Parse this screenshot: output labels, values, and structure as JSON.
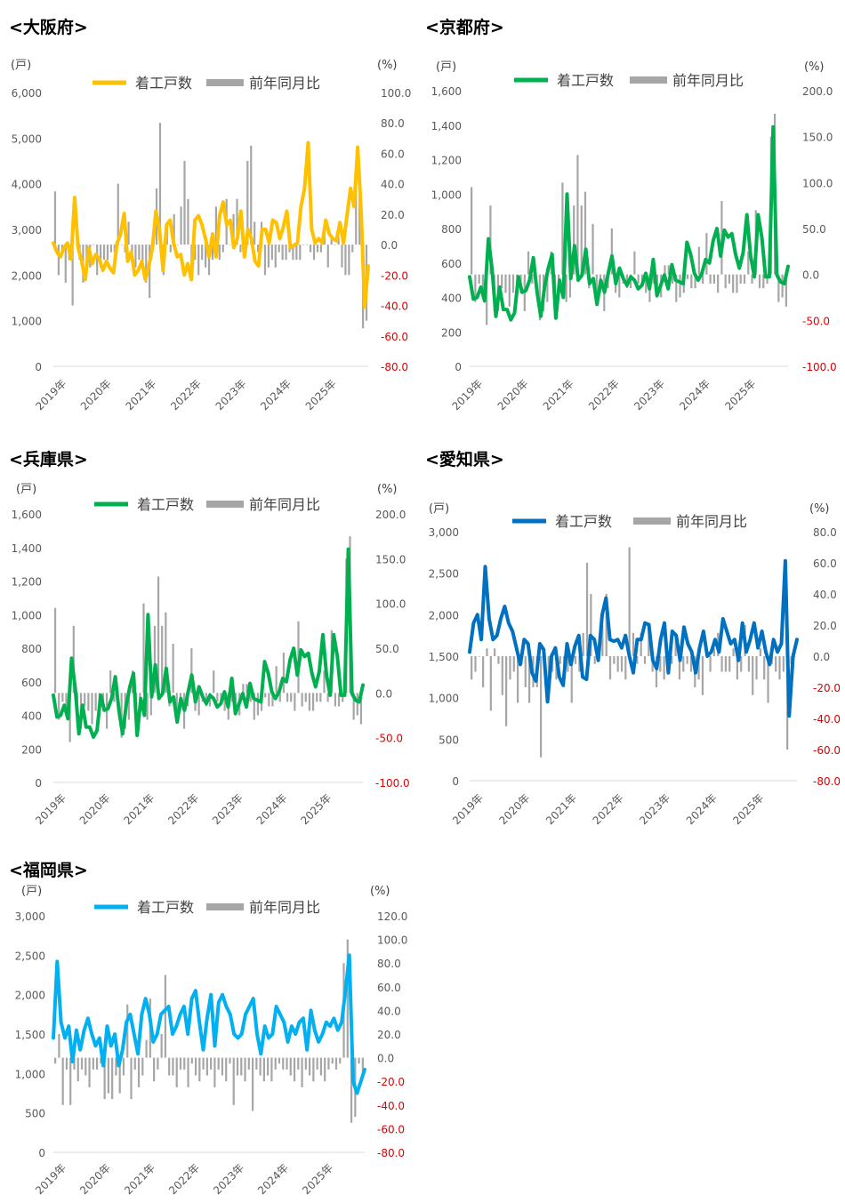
{
  "colors": {
    "osaka": "#FFC000",
    "kyoto": "#00B050",
    "hyogo": "#00B050",
    "aichi": "#0070C0",
    "fukuoka": "#00B0F0",
    "bar": "#A6A6A6",
    "negative_tick": "#E00000"
  },
  "legend": {
    "line": "着工戸数",
    "bar": "前年同月比"
  },
  "units": {
    "left": "(戸)",
    "right": "(%)"
  },
  "x_ticks": [
    "2019年",
    "2020年",
    "2021年",
    "2022年",
    "2023年",
    "2024年",
    "2025年"
  ],
  "chart_data": [
    {
      "id": "osaka",
      "title": "<大阪府>",
      "type": "line+bar",
      "y_left": {
        "min": 0,
        "max": 6000,
        "ticks": [
          "0",
          "1,000",
          "2,000",
          "3,000",
          "4,000",
          "5,000",
          "6,000"
        ]
      },
      "y_right": {
        "min": -80,
        "max": 100,
        "ticks": [
          "-80.0",
          "-60.0",
          "-40.0",
          "-20.0",
          "0.0",
          "20.0",
          "40.0",
          "60.0",
          "80.0",
          "100.0"
        ]
      },
      "series": [
        {
          "name": "着工戸数",
          "kind": "line",
          "values": [
            2700,
            2500,
            2400,
            2600,
            2700,
            2350,
            3700,
            2600,
            2300,
            1900,
            2600,
            2250,
            2450,
            2350,
            2100,
            2300,
            2150,
            2050,
            2700,
            2900,
            3350,
            2300,
            2500,
            2000,
            2100,
            2300,
            1900,
            2200,
            2600,
            3400,
            3000,
            2100,
            3100,
            3200,
            2700,
            2400,
            2450,
            2000,
            2250,
            1900,
            3200,
            3300,
            3100,
            2800,
            2400,
            2900,
            2400,
            3300,
            3600,
            3100,
            3200,
            2600,
            2800,
            3400,
            2400,
            3000,
            2800,
            2300,
            2200,
            3000,
            3000,
            2700,
            3200,
            3150,
            2800,
            3050,
            3400,
            2600,
            2650,
            2700,
            3500,
            3900,
            4900,
            3000,
            2700,
            2800,
            2700,
            3200,
            2900,
            2800,
            2750,
            3150,
            2700,
            3300,
            3900,
            3500,
            4800,
            3400,
            1300,
            2200
          ]
        },
        {
          "name": "前年同月比",
          "kind": "bar",
          "values": [
            35,
            -20,
            -5,
            -25,
            -10,
            -40,
            0,
            -10,
            -25,
            -15,
            -15,
            0,
            -20,
            -15,
            -10,
            -10,
            -5,
            -5,
            40,
            0,
            -5,
            15,
            -10,
            -15,
            -10,
            -15,
            -25,
            -35,
            0,
            37,
            80,
            -20,
            10,
            -5,
            20,
            0,
            25,
            55,
            30,
            -20,
            -10,
            -20,
            -10,
            -15,
            -20,
            -10,
            25,
            -10,
            -5,
            30,
            0,
            20,
            30,
            -5,
            0,
            55,
            65,
            15,
            -5,
            15,
            -20,
            -15,
            -10,
            -15,
            -5,
            -10,
            -10,
            -5,
            -10,
            -10,
            -10,
            0,
            0,
            -5,
            -10,
            -5,
            -5,
            10,
            -15,
            5,
            0,
            5,
            -15,
            -20,
            -20,
            -5,
            40,
            40,
            -55,
            -50
          ]
        }
      ]
    },
    {
      "id": "kyoto",
      "title": "<京都府>",
      "type": "line+bar",
      "y_left": {
        "min": 0,
        "max": 1600,
        "ticks": [
          "0",
          "200",
          "400",
          "600",
          "800",
          "1,000",
          "1,200",
          "1,400",
          "1,600"
        ]
      },
      "y_right": {
        "min": -100,
        "max": 200,
        "ticks": [
          "-100.0",
          "-50.0",
          "0.0",
          "50.0",
          "100.0",
          "150.0",
          "200.0"
        ]
      },
      "series": [
        {
          "name": "着工戸数",
          "kind": "line",
          "values": [
            520,
            390,
            400,
            460,
            380,
            740,
            560,
            290,
            460,
            330,
            330,
            270,
            310,
            520,
            430,
            440,
            500,
            630,
            430,
            290,
            460,
            570,
            650,
            280,
            500,
            400,
            1000,
            510,
            700,
            500,
            530,
            680,
            480,
            510,
            360,
            500,
            430,
            540,
            640,
            480,
            570,
            510,
            470,
            520,
            500,
            450,
            470,
            540,
            450,
            620,
            410,
            470,
            530,
            450,
            590,
            500,
            490,
            480,
            720,
            650,
            540,
            500,
            540,
            620,
            600,
            730,
            800,
            640,
            790,
            750,
            770,
            650,
            570,
            660,
            880,
            640,
            520,
            880,
            750,
            520,
            520,
            1390,
            530,
            490,
            480,
            580
          ]
        },
        {
          "name": "前年同月比",
          "kind": "bar",
          "values": [
            95,
            -30,
            -10,
            -20,
            -55,
            75,
            -40,
            -40,
            -15,
            -20,
            -35,
            -20,
            -25,
            -20,
            -40,
            25,
            -10,
            -15,
            -50,
            -40,
            -30,
            25,
            -15,
            -10,
            100,
            -30,
            -25,
            75,
            130,
            75,
            90,
            -15,
            55,
            -30,
            -20,
            -40,
            -15,
            50,
            -20,
            -25,
            -10,
            -15,
            -15,
            25,
            -10,
            -10,
            -20,
            -30,
            -10,
            -20,
            -25,
            10,
            10,
            -10,
            -30,
            -25,
            -20,
            -5,
            -15,
            -15,
            30,
            -10,
            45,
            -10,
            -10,
            -20,
            80,
            -15,
            -10,
            -20,
            -20,
            -10,
            -10,
            25,
            -10,
            70,
            -15,
            -15,
            -10,
            150,
            175,
            -30,
            -25,
            -35
          ]
        }
      ]
    },
    {
      "id": "hyogo",
      "title": "<兵庫県>",
      "type": "line+bar",
      "y_left": {
        "min": 0,
        "max": 1600,
        "ticks": [
          "0",
          "200",
          "400",
          "600",
          "800",
          "1,000",
          "1,200",
          "1,400",
          "1,600"
        ]
      },
      "y_right": {
        "min": -100,
        "max": 200,
        "ticks": [
          "-100.0",
          "-50.0",
          "0.0",
          "50.0",
          "100.0",
          "150.0",
          "200.0"
        ]
      },
      "series": [
        {
          "name": "着工戸数",
          "kind": "line",
          "values": [
            520,
            390,
            400,
            460,
            380,
            740,
            560,
            290,
            460,
            330,
            330,
            270,
            310,
            520,
            430,
            440,
            500,
            630,
            430,
            290,
            460,
            570,
            650,
            280,
            500,
            400,
            1000,
            510,
            700,
            500,
            530,
            680,
            480,
            510,
            360,
            500,
            430,
            540,
            640,
            480,
            570,
            510,
            470,
            520,
            500,
            450,
            470,
            540,
            450,
            620,
            410,
            470,
            530,
            450,
            590,
            500,
            490,
            480,
            720,
            650,
            540,
            500,
            540,
            620,
            600,
            730,
            800,
            640,
            790,
            750,
            770,
            650,
            570,
            660,
            880,
            640,
            520,
            880,
            750,
            520,
            520,
            1390,
            530,
            490,
            480,
            580
          ]
        },
        {
          "name": "前年同月比",
          "kind": "bar",
          "values": [
            95,
            -30,
            -10,
            -20,
            -55,
            75,
            -40,
            -40,
            -15,
            -20,
            -35,
            -20,
            -25,
            -20,
            -40,
            25,
            -10,
            -15,
            -50,
            -40,
            -30,
            25,
            -15,
            -10,
            100,
            -30,
            -25,
            75,
            130,
            75,
            90,
            -15,
            55,
            -30,
            -20,
            -40,
            -15,
            50,
            -20,
            -25,
            -10,
            -15,
            -15,
            25,
            -10,
            -10,
            -20,
            -30,
            -10,
            -20,
            -25,
            10,
            10,
            -10,
            -30,
            -25,
            -20,
            -5,
            -15,
            -15,
            30,
            -10,
            45,
            -10,
            -10,
            -20,
            80,
            -15,
            -10,
            -20,
            -20,
            -10,
            -10,
            25,
            -10,
            70,
            -15,
            -15,
            -10,
            150,
            175,
            -30,
            -25,
            -35
          ]
        }
      ]
    },
    {
      "id": "aichi",
      "title": "<愛知県>",
      "type": "line+bar",
      "y_left": {
        "min": 0,
        "max": 3000,
        "ticks": [
          "0",
          "500",
          "1,000",
          "1,500",
          "2,000",
          "2,500",
          "3,000"
        ]
      },
      "y_right": {
        "min": -80,
        "max": 80,
        "ticks": [
          "-80.0",
          "-60.0",
          "-40.0",
          "-20.0",
          "0.0",
          "20.0",
          "40.0",
          "60.0",
          "80.0"
        ]
      },
      "series": [
        {
          "name": "着工戸数",
          "kind": "line",
          "values": [
            1550,
            1900,
            2000,
            1700,
            2580,
            1950,
            1700,
            1750,
            1950,
            2100,
            1900,
            1800,
            1600,
            1400,
            1700,
            1650,
            1300,
            1200,
            1650,
            1580,
            950,
            1500,
            1600,
            1250,
            1150,
            1650,
            1400,
            1620,
            1750,
            1250,
            1220,
            1750,
            1700,
            1450,
            2000,
            2200,
            1700,
            1680,
            1700,
            1600,
            1750,
            1500,
            1300,
            1700,
            1700,
            1900,
            1880,
            1450,
            1350,
            1700,
            1900,
            1300,
            1800,
            1750,
            1450,
            1850,
            1650,
            1550,
            1300,
            1600,
            1800,
            1500,
            1550,
            1700,
            1550,
            1950,
            1800,
            1650,
            1700,
            1450,
            1900,
            1550,
            1700,
            1900,
            1600,
            1800,
            1550,
            1400,
            1700,
            1550,
            1650,
            2650,
            780,
            1500,
            1700
          ]
        },
        {
          "name": "前年同月比",
          "kind": "bar",
          "values": [
            -15,
            -10,
            0,
            -20,
            5,
            -35,
            5,
            -5,
            -25,
            -45,
            -15,
            -10,
            -30,
            -5,
            -20,
            -30,
            -20,
            -20,
            -65,
            -5,
            -15,
            -10,
            -15,
            -5,
            -20,
            -10,
            -30,
            -5,
            -10,
            15,
            60,
            40,
            -5,
            5,
            20,
            40,
            -15,
            -5,
            -10,
            -10,
            -15,
            70,
            15,
            -5,
            15,
            -5,
            20,
            -10,
            -20,
            -10,
            -15,
            -5,
            -5,
            15,
            -15,
            -10,
            -5,
            -10,
            -20,
            -15,
            -25,
            5,
            -10,
            5,
            15,
            -10,
            -10,
            -10,
            5,
            -15,
            -10,
            20,
            -10,
            -25,
            -15,
            5,
            -15,
            -30,
            -5,
            -10,
            -15,
            -10,
            -60,
            -5,
            0
          ]
        }
      ]
    },
    {
      "id": "fukuoka",
      "title": "<福岡県>",
      "type": "line+bar",
      "y_left": {
        "min": 0,
        "max": 3000,
        "ticks": [
          "0",
          "500",
          "1,000",
          "1,500",
          "2,000",
          "2,500",
          "3,000"
        ]
      },
      "y_right": {
        "min": -80,
        "max": 120,
        "ticks": [
          "-80.0",
          "-60.0",
          "-40.0",
          "-20.0",
          "0.0",
          "20.0",
          "40.0",
          "60.0",
          "80.0",
          "100.0",
          "120.0"
        ]
      },
      "series": [
        {
          "name": "着工戸数",
          "kind": "line",
          "values": [
            1450,
            2420,
            1650,
            1450,
            1600,
            1150,
            1550,
            1300,
            1550,
            1700,
            1500,
            1350,
            1450,
            1100,
            1600,
            1350,
            1500,
            1100,
            1300,
            1650,
            1750,
            1500,
            1250,
            1750,
            1950,
            1750,
            1400,
            1500,
            1750,
            1800,
            1850,
            1500,
            1600,
            1750,
            1850,
            1500,
            1950,
            2050,
            1650,
            1300,
            1700,
            2000,
            1350,
            1900,
            2000,
            1850,
            1750,
            1500,
            1450,
            1500,
            1750,
            1850,
            1950,
            1500,
            1250,
            1600,
            1450,
            1500,
            1850,
            1750,
            1650,
            1400,
            1600,
            1500,
            1650,
            1700,
            1300,
            1800,
            1550,
            1400,
            1500,
            1650,
            1600,
            1700,
            1550,
            1650,
            2050,
            2500,
            900,
            750,
            900,
            1050
          ]
        },
        {
          "name": "前年同月比",
          "kind": "bar",
          "values": [
            -5,
            20,
            -40,
            -10,
            -40,
            -10,
            -20,
            -10,
            -15,
            -25,
            -10,
            -10,
            -5,
            -35,
            -30,
            -35,
            -15,
            -30,
            -15,
            45,
            -35,
            -10,
            -25,
            -15,
            15,
            50,
            -20,
            -10,
            20,
            70,
            -15,
            -15,
            -25,
            -10,
            -10,
            -25,
            -5,
            -15,
            -20,
            -10,
            -15,
            -10,
            -25,
            -10,
            -15,
            -20,
            -5,
            -40,
            -15,
            -15,
            -20,
            -10,
            -45,
            -10,
            -15,
            -20,
            -15,
            -20,
            -10,
            -5,
            -10,
            -10,
            -15,
            -20,
            -10,
            -25,
            -10,
            -15,
            -20,
            -10,
            -15,
            -20,
            -10,
            -5,
            -10,
            -5,
            80,
            100,
            -55,
            -50,
            -5,
            -15
          ]
        }
      ]
    }
  ]
}
